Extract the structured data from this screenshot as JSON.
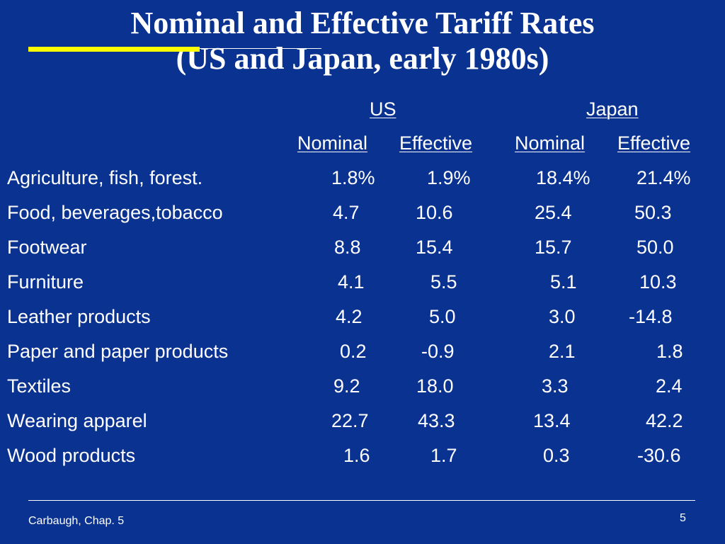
{
  "title": {
    "line1": "Nominal and Effective Tariff Rates",
    "line2": "(US and Japan, early 1980s)"
  },
  "table": {
    "groups": {
      "us": "US",
      "japan": "Japan"
    },
    "columns": {
      "us_nominal": "Nominal",
      "us_effective": "Effective",
      "japan_nominal": "Nominal",
      "japan_effective": "Effective"
    },
    "rows": [
      {
        "label": "Agriculture, fish, forest.",
        "us_nominal": "1.8%",
        "us_effective": "1.9%",
        "japan_nominal": "18.4%",
        "japan_effective": "21.4%"
      },
      {
        "label": "Food, beverages,tobacco",
        "us_nominal": "4.7",
        "us_effective": "10.6",
        "japan_nominal": "25.4",
        "japan_effective": "50.3"
      },
      {
        "label": "Footwear",
        "us_nominal": "8.8",
        "us_effective": "15.4",
        "japan_nominal": "15.7",
        "japan_effective": "50.0"
      },
      {
        "label": "Furniture",
        "us_nominal": "4.1",
        "us_effective": "5.5",
        "japan_nominal": "5.1",
        "japan_effective": "10.3"
      },
      {
        "label": "Leather products",
        "us_nominal": "4.2",
        "us_effective": "5.0",
        "japan_nominal": "3.0",
        "japan_effective": "-14.8"
      },
      {
        "label": "Paper and paper products",
        "us_nominal": "0.2",
        "us_effective": "-0.9",
        "japan_nominal": "2.1",
        "japan_effective": "1.8"
      },
      {
        "label": "Textiles",
        "us_nominal": "9.2",
        "us_effective": "18.0",
        "japan_nominal": "3.3",
        "japan_effective": "2.4"
      },
      {
        "label": "Wearing apparel",
        "us_nominal": "22.7",
        "us_effective": "43.3",
        "japan_nominal": "13.4",
        "japan_effective": "42.2"
      },
      {
        "label": "Wood products",
        "us_nominal": "1.6",
        "us_effective": "1.7",
        "japan_nominal": "0.3",
        "japan_effective": "-30.6"
      }
    ]
  },
  "footer": {
    "source": "Carbaugh, Chap. 5",
    "page": "5"
  },
  "colors": {
    "background": "#0a3290",
    "accent": "#ffff00",
    "text": "#ffffff"
  }
}
